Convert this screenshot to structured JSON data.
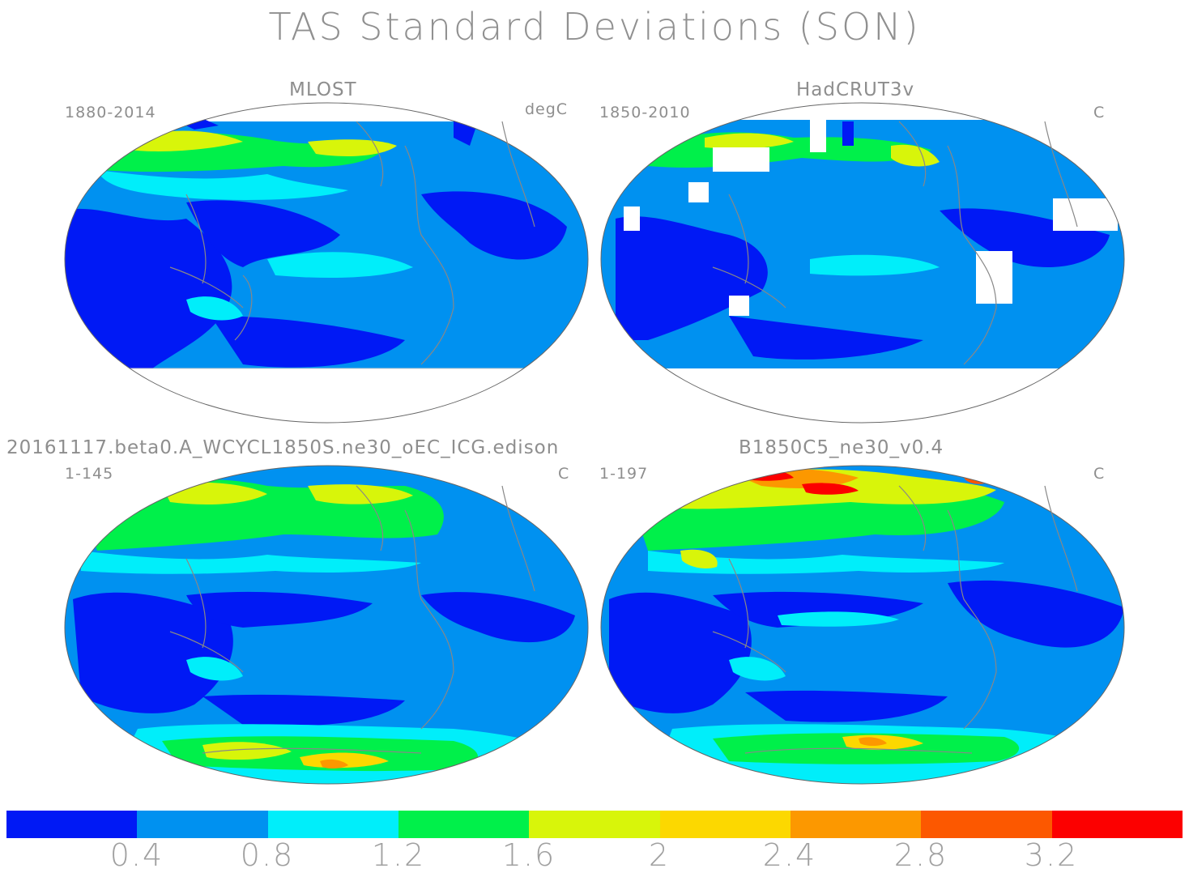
{
  "title": "TAS Standard Deviations (SON)",
  "panels": [
    {
      "name": "MLOST",
      "period": "1880-2014",
      "units": "degC"
    },
    {
      "name": "HadCRUT3v",
      "period": "1850-2010",
      "units": "C"
    },
    {
      "name": "20161117.beta0.A_WCYCL1850S.ne30_oEC_ICG.edison",
      "period": "1-145",
      "units": "C"
    },
    {
      "name": "B1850C5_ne30_v0.4",
      "period": "1-197",
      "units": "C"
    }
  ],
  "colorbar": {
    "colors": [
      "#0019f5",
      "#0091f0",
      "#00eefa",
      "#00f04a",
      "#d8f50a",
      "#fcd800",
      "#fc9800",
      "#fc5800",
      "#fc0000"
    ],
    "tick_labels": [
      "0.4",
      "0.8",
      "1.2",
      "1.6",
      "2",
      "2.4",
      "2.8",
      "3.2"
    ]
  }
}
